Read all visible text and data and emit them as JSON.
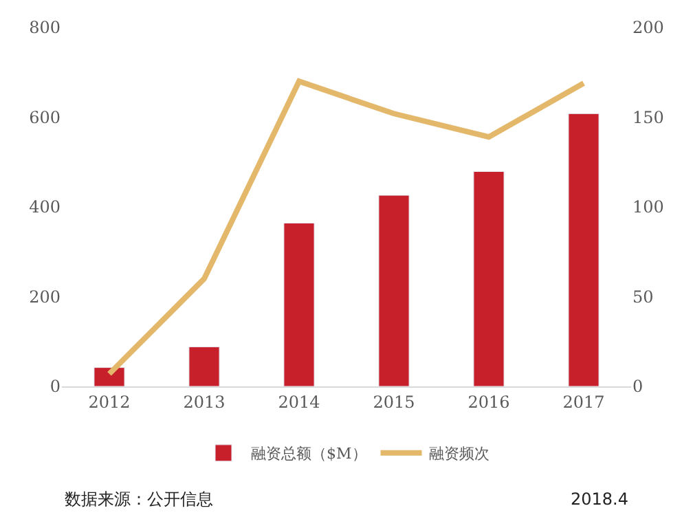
{
  "chart_data": {
    "type": "bar",
    "categories": [
      "2012",
      "2013",
      "2014",
      "2015",
      "2016",
      "2017"
    ],
    "series": [
      {
        "name": "融资总额（$M）",
        "color": "#c8202a",
        "values": [
          42,
          88,
          364,
          426,
          479,
          608
        ]
      },
      {
        "name": "融资频次",
        "color": "#e3b86b",
        "type": "line",
        "axis": "y2",
        "values": [
          7,
          60,
          170,
          152,
          139,
          169
        ]
      }
    ],
    "ylim": [
      0,
      800
    ],
    "yticks": [
      0,
      200,
      400,
      600,
      800
    ],
    "y2lim": [
      0,
      200
    ],
    "y2ticks": [
      0,
      50,
      100,
      150,
      200
    ],
    "legend": "bottom",
    "marker": "none",
    "annotations": [
      "数据来源：公开信息",
      "2018.4"
    ]
  }
}
